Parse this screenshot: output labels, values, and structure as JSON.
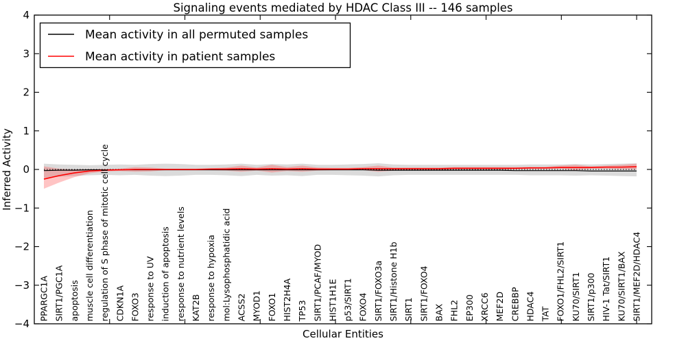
{
  "figure": {
    "title": "Signaling events mediated by HDAC Class III -- 146 samples",
    "xlabel": "Cellular Entities",
    "ylabel": "Inferred Activity"
  },
  "legend": {
    "items": [
      {
        "label": "Mean activity in all permuted samples",
        "color": "#000000"
      },
      {
        "label": "Mean activity in patient samples",
        "color": "#ff0000"
      }
    ]
  },
  "chart_data": {
    "type": "line",
    "title": "Signaling events mediated by HDAC Class III -- 146 samples",
    "xlabel": "Cellular Entities",
    "ylabel": "Inferred Activity",
    "ylim": [
      -4,
      4
    ],
    "yticks": [
      {
        "value": 4,
        "label": "4"
      },
      {
        "value": 3,
        "label": "3"
      },
      {
        "value": 2,
        "label": "2"
      },
      {
        "value": 1,
        "label": "1"
      },
      {
        "value": 0,
        "label": "0"
      },
      {
        "value": -1,
        "label": "−1"
      },
      {
        "value": -2,
        "label": "−2"
      },
      {
        "value": -3,
        "label": "−3"
      },
      {
        "value": -4,
        "label": "−4"
      }
    ],
    "grid": false,
    "legend_position": "upper left",
    "zero_line": {
      "style": "dotted",
      "color": "#000000"
    },
    "categories": [
      "PPARGC1A",
      "SIRT1/PGC1A",
      "apoptosis",
      "muscle cell differentiation",
      "regulation of S phase of mitotic cell cycle",
      "CDKN1A",
      "FOXO3",
      "response to UV",
      "induction of apoptosis",
      "response to nutrient levels",
      "KAT2B",
      "response to hypoxia",
      "mol:Lysophosphatidic acid",
      "ACSS2",
      "MYOD1",
      "FOXO1",
      "HIST2H4A",
      "TP53",
      "SIRT1/PCAF/MYOD",
      "HIST1H1E",
      "p53/SIRT1",
      "FOXO4",
      "SIRT1/FOXO3a",
      "SIRT1/Histone H1b",
      "SIRT1",
      "SIRT1/FOXO4",
      "BAX",
      "FHL2",
      "EP300",
      "XRCC6",
      "MEF2D",
      "CREBBP",
      "HDAC4",
      "TAT",
      "FOXO1/FHL2/SIRT1",
      "KU70/SIRT1",
      "SIRT1/p300",
      "HIV-1 Tat/SIRT1",
      "KU70/SIRT1/BAX",
      "SIRT1/MEF2D/HDAC4"
    ],
    "series": [
      {
        "name": "Mean activity in all permuted samples",
        "color": "#000000",
        "line_width": 1.2,
        "values": [
          -0.03,
          -0.02,
          -0.02,
          -0.01,
          -0.01,
          -0.01,
          -0.01,
          -0.01,
          -0.01,
          -0.01,
          -0.01,
          -0.01,
          -0.01,
          -0.01,
          -0.01,
          -0.01,
          -0.01,
          -0.01,
          -0.01,
          -0.01,
          -0.01,
          -0.01,
          -0.02,
          -0.02,
          -0.02,
          -0.02,
          -0.02,
          -0.02,
          -0.02,
          -0.02,
          -0.02,
          -0.03,
          -0.03,
          -0.03,
          -0.03,
          -0.03,
          -0.04,
          -0.04,
          -0.04,
          -0.04
        ],
        "band": {
          "upper": [
            0.15,
            0.13,
            0.12,
            0.11,
            0.12,
            0.13,
            0.12,
            0.14,
            0.15,
            0.14,
            0.12,
            0.12,
            0.13,
            0.15,
            0.12,
            0.14,
            0.13,
            0.15,
            0.12,
            0.12,
            0.13,
            0.14,
            0.16,
            0.13,
            0.12,
            0.12,
            0.12,
            0.12,
            0.12,
            0.12,
            0.12,
            0.12,
            0.13,
            0.13,
            0.13,
            0.14,
            0.13,
            0.14,
            0.15,
            0.16
          ],
          "lower": [
            -0.22,
            -0.19,
            -0.17,
            -0.15,
            -0.14,
            -0.15,
            -0.14,
            -0.16,
            -0.17,
            -0.16,
            -0.14,
            -0.14,
            -0.15,
            -0.17,
            -0.14,
            -0.16,
            -0.15,
            -0.17,
            -0.14,
            -0.14,
            -0.15,
            -0.16,
            -0.18,
            -0.15,
            -0.14,
            -0.14,
            -0.14,
            -0.14,
            -0.14,
            -0.14,
            -0.14,
            -0.14,
            -0.15,
            -0.15,
            -0.15,
            -0.16,
            -0.15,
            -0.16,
            -0.17,
            -0.18
          ],
          "color": "#999999",
          "opacity": 0.35
        }
      },
      {
        "name": "Mean activity in patient samples",
        "color": "#ff0000",
        "line_width": 1.6,
        "values": [
          -0.25,
          -0.16,
          -0.09,
          -0.04,
          -0.02,
          -0.01,
          0.0,
          0.0,
          0.0,
          0.0,
          0.0,
          0.01,
          0.01,
          0.02,
          0.01,
          0.02,
          0.01,
          0.02,
          0.01,
          0.01,
          0.01,
          0.02,
          0.02,
          0.02,
          0.02,
          0.02,
          0.02,
          0.03,
          0.03,
          0.03,
          0.03,
          0.03,
          0.04,
          0.04,
          0.05,
          0.05,
          0.05,
          0.06,
          0.06,
          0.07
        ],
        "band": {
          "upper": [
            0.08,
            0.02,
            0.0,
            0.01,
            0.01,
            0.02,
            0.06,
            0.05,
            0.02,
            0.02,
            0.02,
            0.03,
            0.05,
            0.1,
            0.05,
            0.12,
            0.06,
            0.1,
            0.05,
            0.04,
            0.04,
            0.06,
            0.1,
            0.05,
            0.05,
            0.05,
            0.05,
            0.06,
            0.06,
            0.06,
            0.06,
            0.06,
            0.07,
            0.07,
            0.1,
            0.12,
            0.08,
            0.1,
            0.12,
            0.15
          ],
          "lower": [
            -0.5,
            -0.34,
            -0.2,
            -0.1,
            -0.05,
            -0.04,
            -0.06,
            -0.05,
            -0.02,
            -0.02,
            -0.02,
            -0.02,
            -0.03,
            -0.06,
            -0.03,
            -0.08,
            -0.04,
            -0.06,
            -0.03,
            -0.02,
            -0.02,
            -0.02,
            -0.06,
            -0.03,
            -0.01,
            -0.01,
            -0.01,
            0.0,
            0.0,
            0.0,
            0.0,
            0.0,
            0.01,
            0.01,
            0.02,
            -0.02,
            0.02,
            0.02,
            0.01,
            0.0
          ],
          "color": "#ff5555",
          "opacity": 0.35
        }
      }
    ]
  }
}
